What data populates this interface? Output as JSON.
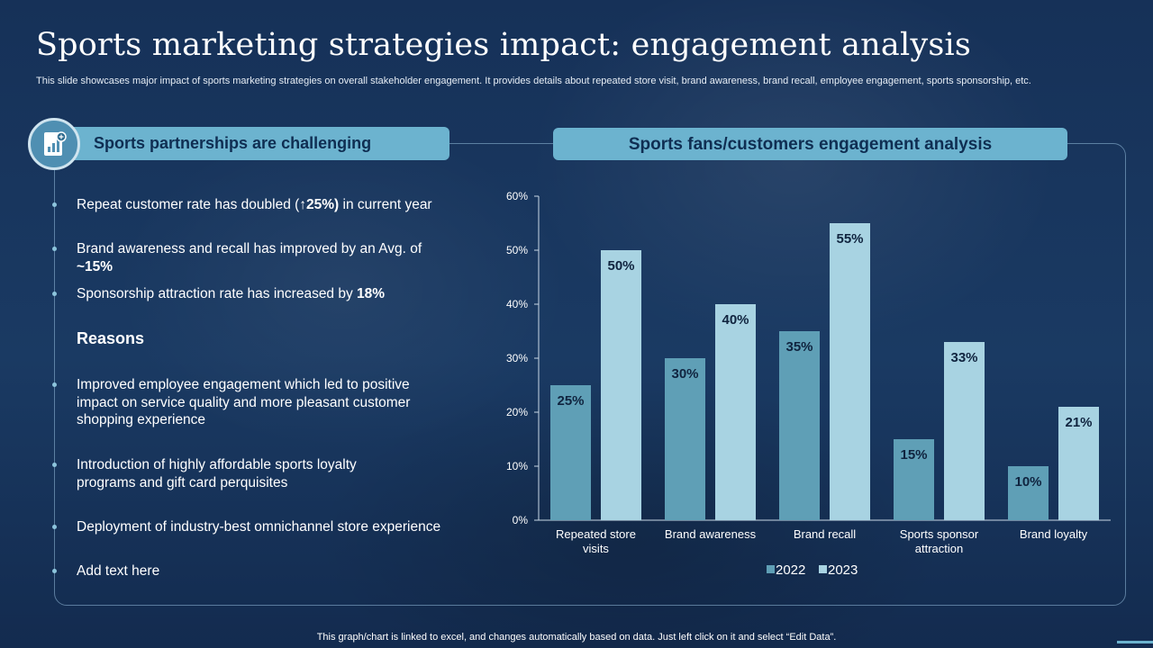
{
  "slide": {
    "title": "Sports marketing strategies impact: engagement analysis",
    "subtitle": "This slide showcases major impact of sports marketing strategies on overall stakeholder engagement. It provides details about repeated store visit, brand awareness, brand recall, employee engagement, sports sponsorship, etc.",
    "footer": "This graph/chart is linked to excel,  and changes automatically based on data. Just left click on it and select “Edit Data”."
  },
  "left_panel": {
    "header": "Sports partnerships are challenging",
    "icon": "report-chart-icon",
    "bullets": [
      {
        "pre": "Repeat customer rate has doubled (",
        "bold": "↑25%)",
        "post": " in current year"
      },
      {
        "pre": "Brand awareness and recall has improved by an Avg. of ",
        "bold": "~15%",
        "post": ""
      },
      {
        "pre": "Sponsorship attraction rate has increased by ",
        "bold": "18%",
        "post": ""
      }
    ],
    "reasons_heading": "Reasons",
    "reasons": [
      "Improved employee engagement which led to positive impact on service quality and more pleasant customer shopping experience",
      "Introduction  of highly affordable sports loyalty programs and gift card perquisites",
      "Deployment of industry-best  omnichannel  store experience",
      "Add text here"
    ]
  },
  "right_panel": {
    "header": "Sports fans/customers engagement analysis"
  },
  "chart_data": {
    "type": "bar",
    "title": "Sports fans/customers engagement analysis",
    "categories": [
      "Repeated store visits",
      "Brand awareness",
      "Brand recall",
      "Sports sponsor attraction",
      "Brand loyalty"
    ],
    "series": [
      {
        "name": "2022",
        "values": [
          25,
          30,
          35,
          15,
          10
        ],
        "color": "#5f9fb6"
      },
      {
        "name": "2023",
        "values": [
          50,
          40,
          55,
          33,
          21
        ],
        "color": "#a8d3e2"
      }
    ],
    "ylim": [
      0,
      60
    ],
    "yticks": [
      0,
      10,
      20,
      30,
      40,
      50,
      60
    ],
    "ytick_suffix": "%",
    "value_suffix": "%",
    "xlabel": "",
    "ylabel": "",
    "legend": "bottom-center",
    "grid": false
  }
}
